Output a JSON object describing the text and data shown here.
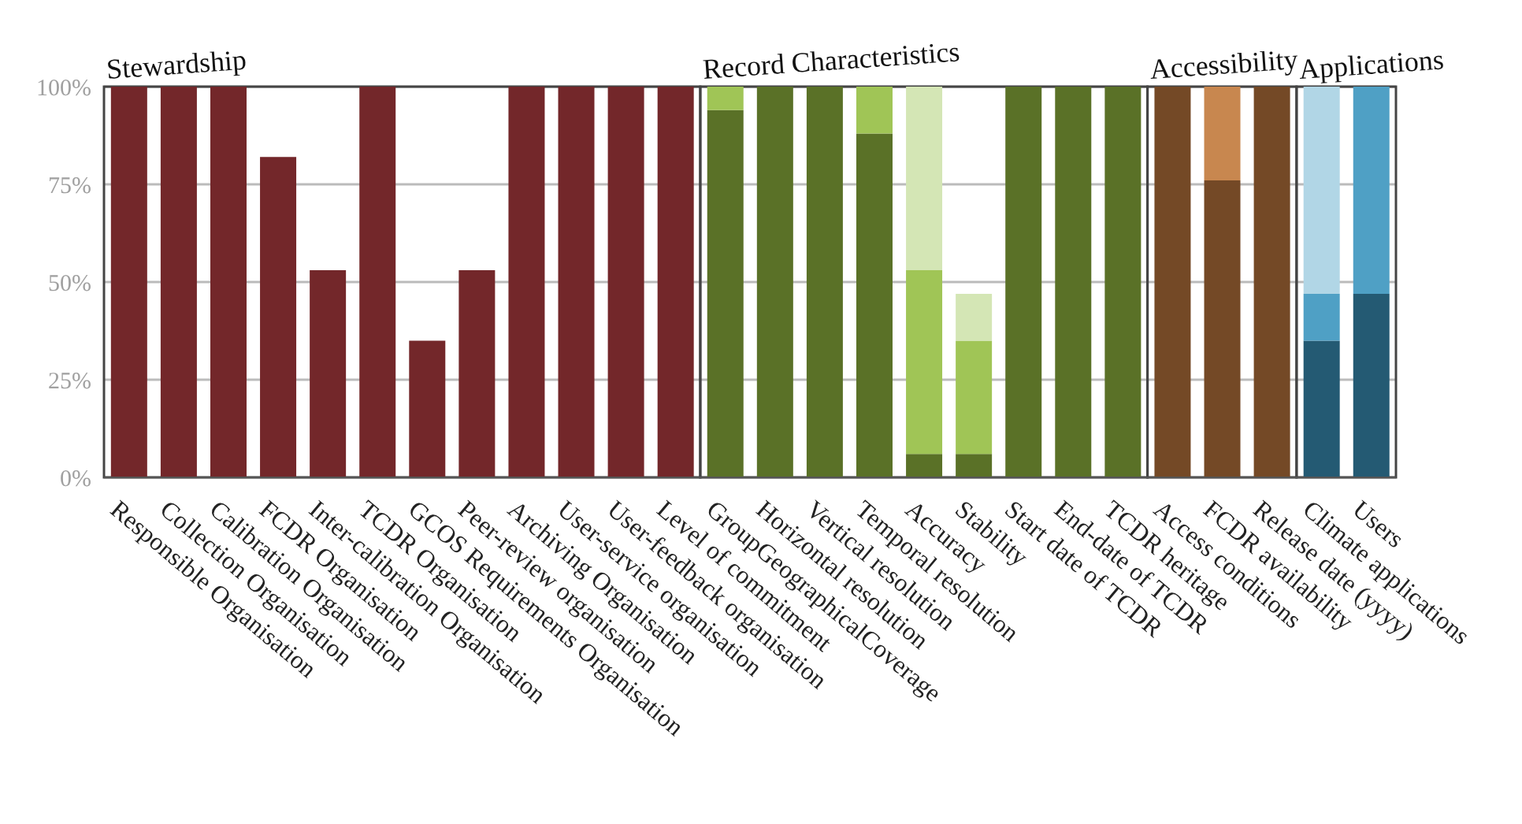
{
  "chart_data": {
    "type": "bar",
    "stacked": true,
    "categories": [
      "Responsible Organisation",
      "Collection Organisation",
      "Calibration Organisation",
      "FCDR Organisation",
      "Inter-calibration Organisation",
      "TCDR Organisation",
      "GCOS Requirements Organisation",
      "Peer-review organisation",
      "Archiving Organisation",
      "User-service organisation",
      "User-feedback organisation",
      "Level of commitment",
      "GroupGeographicalCoverage",
      "Horizontal resolution",
      "Vertical resolution",
      "Temporal resolution",
      "Accuracy",
      "Stability",
      "Start date of TCDR",
      "End-date of TCDR",
      "TCDR heritage",
      "Access conditions",
      "FCDR availability",
      "Release date (yyyy)",
      "Climate applications",
      "Users"
    ],
    "series": [
      {
        "values": [
          100,
          100,
          100,
          82,
          53,
          100,
          35,
          53,
          100,
          100,
          100,
          100,
          94,
          100,
          100,
          88,
          6,
          6,
          100,
          100,
          100,
          100,
          76,
          100,
          35,
          47
        ],
        "colors": [
          "#73272a",
          "#73272a",
          "#73272a",
          "#73272a",
          "#73272a",
          "#73272a",
          "#73272a",
          "#73272a",
          "#73272a",
          "#73272a",
          "#73272a",
          "#73272a",
          "#5a7127",
          "#5a7127",
          "#5a7127",
          "#5a7127",
          "#5a7127",
          "#5a7127",
          "#5a7127",
          "#5a7127",
          "#5a7127",
          "#744926",
          "#744926",
          "#744926",
          "#245a73",
          "#245a73"
        ]
      },
      {
        "values": [
          null,
          null,
          null,
          null,
          null,
          null,
          null,
          null,
          null,
          null,
          null,
          null,
          6,
          null,
          null,
          12,
          47,
          29,
          null,
          null,
          null,
          null,
          24,
          null,
          12,
          53
        ],
        "colors": [
          "#73272a",
          "#73272a",
          "#73272a",
          "#73272a",
          "#73272a",
          "#73272a",
          "#73272a",
          "#73272a",
          "#73272a",
          "#73272a",
          "#73272a",
          "#73272a",
          "#a0c556",
          "#a0c556",
          "#a0c556",
          "#a0c556",
          "#a0c556",
          "#a0c556",
          "#a0c556",
          "#a0c556",
          "#a0c556",
          "#c8874f",
          "#c8874f",
          "#c8874f",
          "#4fa0c5",
          "#4fa0c5"
        ]
      },
      {
        "values": [
          null,
          null,
          null,
          null,
          null,
          null,
          null,
          null,
          null,
          null,
          null,
          null,
          null,
          null,
          null,
          null,
          47,
          12,
          null,
          null,
          null,
          null,
          null,
          null,
          53,
          null
        ],
        "colors": [
          "#73272a",
          "#73272a",
          "#73272a",
          "#73272a",
          "#73272a",
          "#73272a",
          "#73272a",
          "#73272a",
          "#73272a",
          "#73272a",
          "#73272a",
          "#73272a",
          "#d4e6b5",
          "#d4e6b5",
          "#d4e6b5",
          "#d4e6b5",
          "#d4e6b5",
          "#d4e6b5",
          "#d4e6b5",
          "#d4e6b5",
          "#d4e6b5",
          "#c8874f",
          "#c8874f",
          "#c8874f",
          "#b1d6e6",
          "#b1d6e6"
        ]
      }
    ],
    "ylim": [
      0,
      100
    ],
    "yticks": [
      {
        "value": 0,
        "label": "0%"
      },
      {
        "value": 25,
        "label": "25%"
      },
      {
        "value": 50,
        "label": "50%"
      },
      {
        "value": 75,
        "label": "75%"
      },
      {
        "value": 100,
        "label": "100%"
      }
    ],
    "grid": "y",
    "annotations": [
      "Stewardship",
      "Record Characteristics",
      "Accessibility",
      "Applications"
    ]
  }
}
